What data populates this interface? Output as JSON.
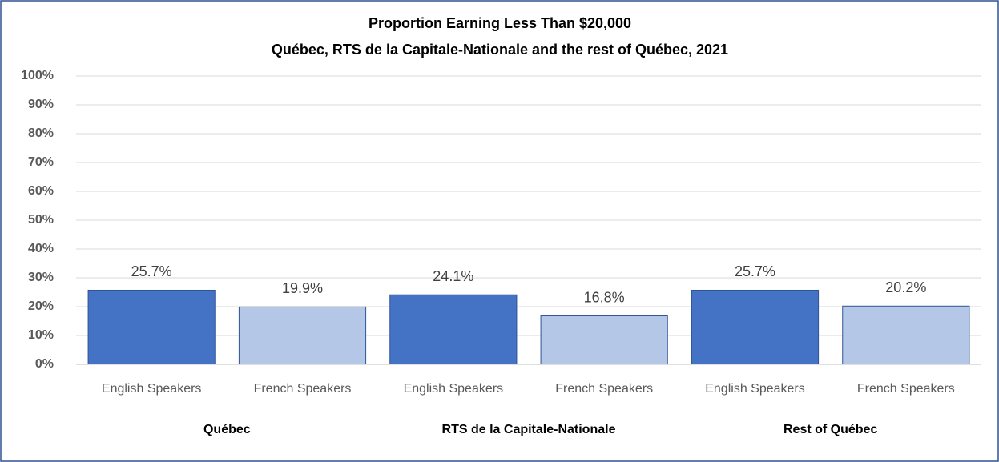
{
  "chart_data": {
    "type": "bar",
    "title": "Proportion Earning  Less Than  $20,000",
    "subtitle": "Québec, RTS de la Capitale-Nationale  and the rest of Québec, 2021",
    "categories": [
      "English Speakers",
      "French Speakers",
      "English Speakers",
      "French Speakers",
      "English Speakers",
      "French Speakers"
    ],
    "groups": [
      "Québec",
      "RTS de la Capitale-Nationale",
      "Rest of Québec"
    ],
    "values": [
      25.7,
      19.9,
      24.1,
      16.8,
      25.7,
      20.2
    ],
    "value_labels": [
      "25.7%",
      "19.9%",
      "24.1%",
      "16.8%",
      "25.7%",
      "20.2%"
    ],
    "colors": [
      "#4472c4",
      "#b4c7e7",
      "#4472c4",
      "#b4c7e7",
      "#4472c4",
      "#b4c7e7"
    ],
    "ylim": [
      0,
      100
    ],
    "yticks": [
      {
        "value": 0,
        "label": "0%"
      },
      {
        "value": 10,
        "label": "10%"
      },
      {
        "value": 20,
        "label": "20%"
      },
      {
        "value": 30,
        "label": "30%"
      },
      {
        "value": 40,
        "label": "40%"
      },
      {
        "value": 50,
        "label": "50%"
      },
      {
        "value": 60,
        "label": "60%"
      },
      {
        "value": 70,
        "label": "70%"
      },
      {
        "value": 80,
        "label": "80%"
      },
      {
        "value": 90,
        "label": "90%"
      },
      {
        "value": 100,
        "label": "100%"
      }
    ],
    "grid": true
  }
}
